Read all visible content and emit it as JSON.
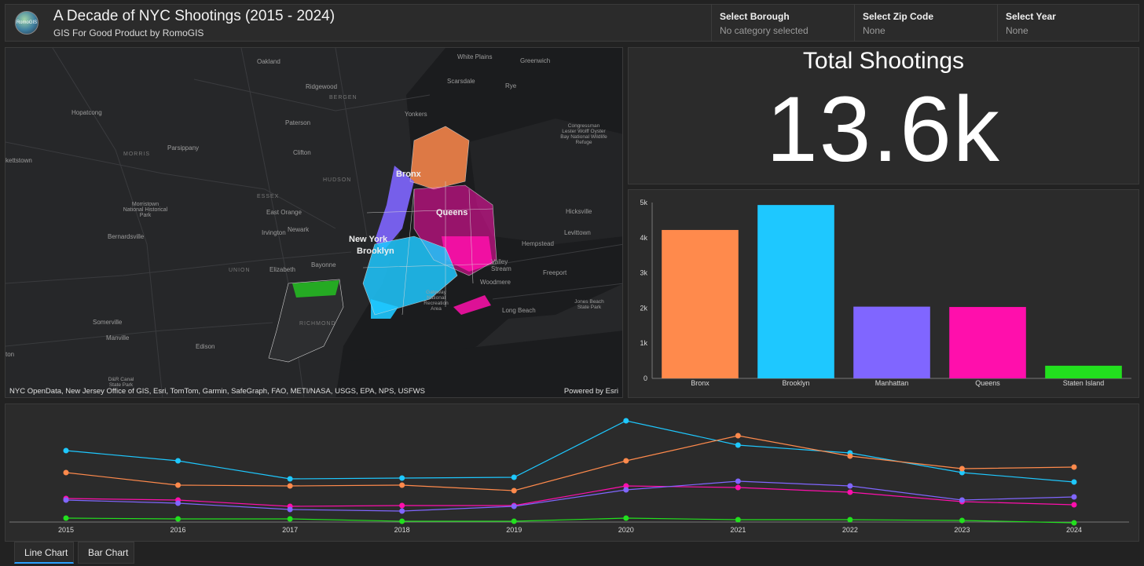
{
  "header": {
    "logo_text": "RomoGIS",
    "title": "A Decade of NYC Shootings (2015 - 2024)",
    "subtitle": "GIS For Good Product by RomoGIS"
  },
  "filters": [
    {
      "label": "Select Borough",
      "value": "No category selected"
    },
    {
      "label": "Select Zip Code",
      "value": "None"
    },
    {
      "label": "Select Year",
      "value": "None"
    }
  ],
  "map": {
    "place_labels": [
      "Oakland",
      "White Plains",
      "Greenwich",
      "Ridgewood",
      "Scarsdale",
      "Rye",
      "BERGEN",
      "Hopatcong",
      "Yonkers",
      "Paterson",
      "Congressman Lester Wolff Oyster Bay National Wildlife Refuge",
      "Parsippany",
      "Clifton",
      "kettstown",
      "MORRIS",
      "HUDSON",
      "Bronx",
      "ESSEX",
      "Morristown National Historical Park",
      "East Orange",
      "Queens",
      "Hicksville",
      "Newark",
      "Irvington",
      "Bernardsville",
      "New York",
      "Levittown",
      "Hempstead",
      "Brooklyn",
      "UNION",
      "Elizabeth",
      "Bayonne",
      "Valley Stream",
      "Freeport",
      "Woodmere",
      "Gateway National Recreation Area",
      "Jones Beach State Park",
      "Long Beach",
      "Somerville",
      "RICHMOND",
      "Manville",
      "Edison",
      "ton",
      "D&R Canal State Park"
    ],
    "attribution": "NYC OpenData, New Jersey Office of GIS, Esri, TomTom, Garmin, SafeGraph, FAO, METI/NASA, USGS, EPA, NPS, USFWS",
    "powered_by": "Powered by Esri"
  },
  "kpi": {
    "title": "Total Shootings",
    "value": "13.6k"
  },
  "colors": {
    "Bronx": "#ff8a4c",
    "Brooklyn": "#1ec8ff",
    "Manhattan": "#8066ff",
    "Queens": "#ff0fac",
    "Staten Island": "#22e01e"
  },
  "chart_data": [
    {
      "type": "bar",
      "title": "",
      "categories": [
        "Bronx",
        "Brooklyn",
        "Manhattan",
        "Queens",
        "Staten Island"
      ],
      "values": [
        4220,
        4930,
        2040,
        2030,
        360
      ],
      "ylim": [
        0,
        5000
      ],
      "yticks": [
        0,
        1000,
        2000,
        3000,
        4000,
        5000
      ],
      "ytick_labels": [
        "0",
        "1k",
        "2k",
        "3k",
        "4k",
        "5k"
      ],
      "xlabel": "",
      "ylabel": ""
    },
    {
      "type": "line",
      "title": "",
      "x": [
        "2015",
        "2016",
        "2017",
        "2018",
        "2019",
        "2020",
        "2021",
        "2022",
        "2023",
        "2024"
      ],
      "ylim": [
        0,
        650
      ],
      "series": [
        {
          "name": "Brooklyn",
          "values": [
            455,
            390,
            275,
            280,
            285,
            645,
            490,
            440,
            315,
            255
          ]
        },
        {
          "name": "Bronx",
          "values": [
            315,
            235,
            230,
            235,
            200,
            390,
            550,
            420,
            340,
            350
          ]
        },
        {
          "name": "Queens",
          "values": [
            150,
            140,
            100,
            105,
            105,
            230,
            220,
            190,
            130,
            110
          ]
        },
        {
          "name": "Manhattan",
          "values": [
            140,
            120,
            80,
            70,
            100,
            205,
            260,
            230,
            140,
            160
          ]
        },
        {
          "name": "Staten Island",
          "values": [
            25,
            20,
            20,
            5,
            5,
            25,
            15,
            15,
            10,
            -5
          ]
        }
      ]
    }
  ],
  "tabs": [
    {
      "label": "Line Chart",
      "active": true
    },
    {
      "label": "Bar Chart",
      "active": false
    }
  ]
}
